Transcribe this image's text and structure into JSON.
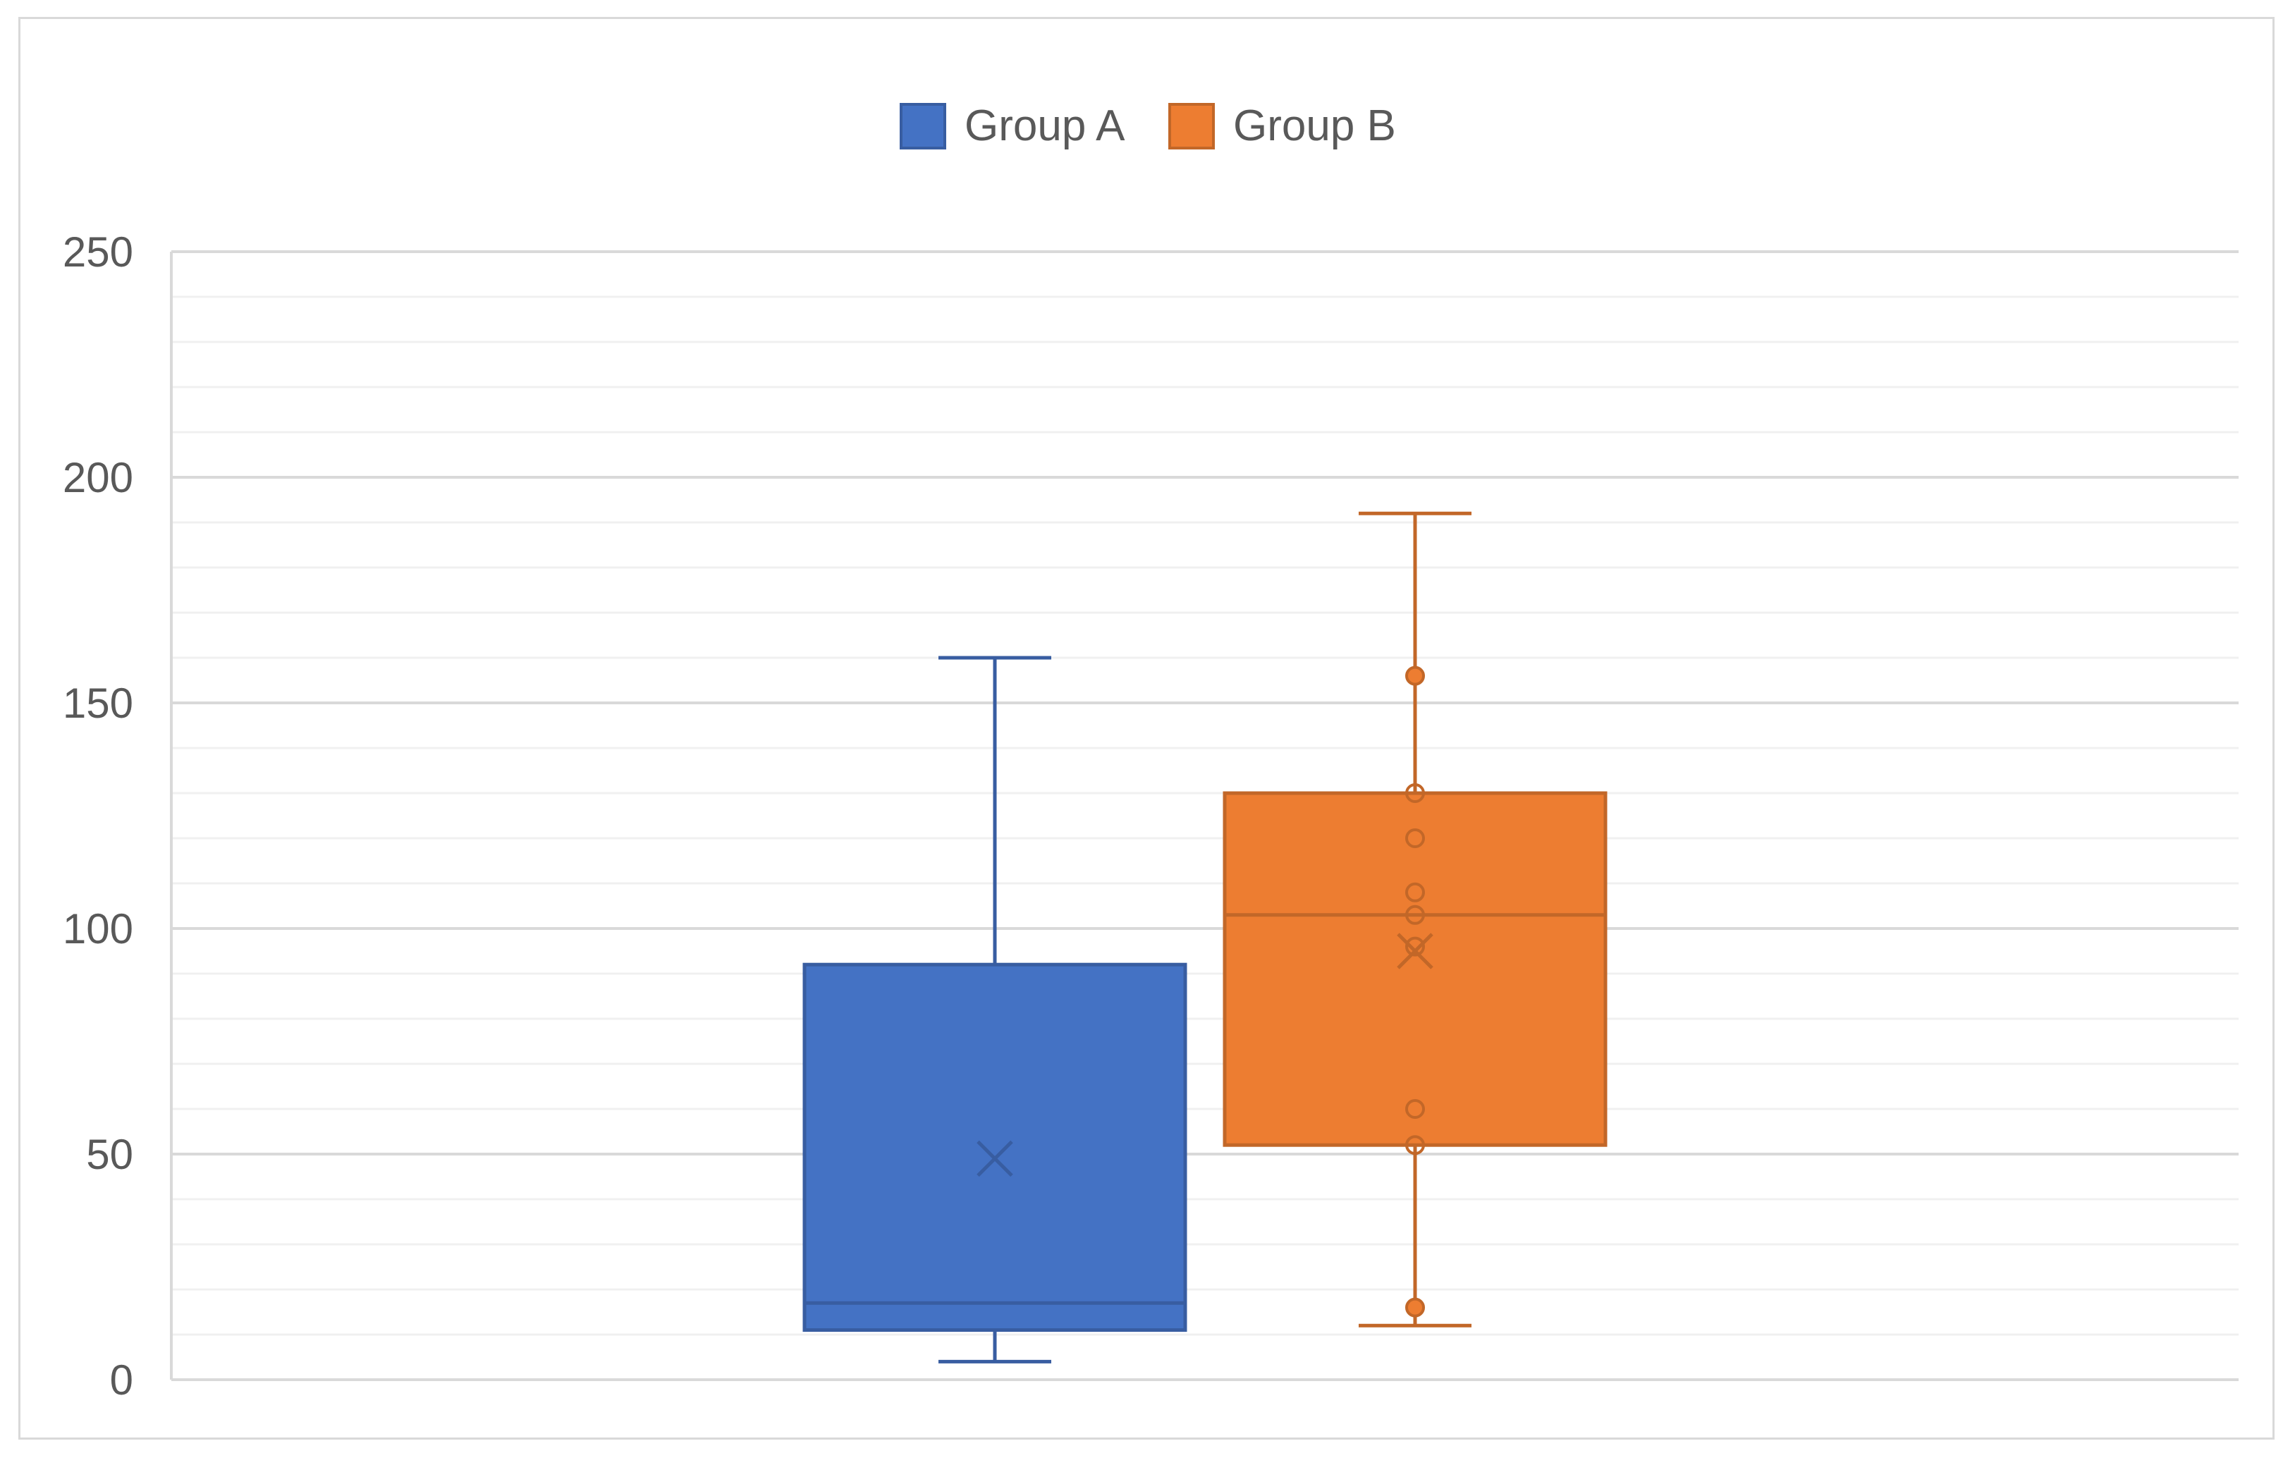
{
  "chart_data": {
    "type": "boxplot",
    "title": "",
    "xlabel": "",
    "ylabel": "",
    "ylim": [
      0,
      250
    ],
    "yticks": [
      0,
      50,
      100,
      150,
      200,
      250
    ],
    "minor_gridline_step": 10,
    "grid": true,
    "legend": {
      "placement": "top-center",
      "entries": [
        "Group A",
        "Group B"
      ]
    },
    "series": [
      {
        "name": "Group A",
        "color": "#4472C4",
        "min": 4,
        "q1": 11,
        "median": 17,
        "q3": 92,
        "max": 160,
        "mean": 49,
        "points": []
      },
      {
        "name": "Group B",
        "color": "#ED7D31",
        "min": 12,
        "q1": 52,
        "median": 103,
        "q3": 130,
        "max": 192,
        "mean": 95,
        "points": [
          16,
          52,
          60,
          96,
          103,
          108,
          120,
          130,
          156
        ]
      }
    ]
  }
}
